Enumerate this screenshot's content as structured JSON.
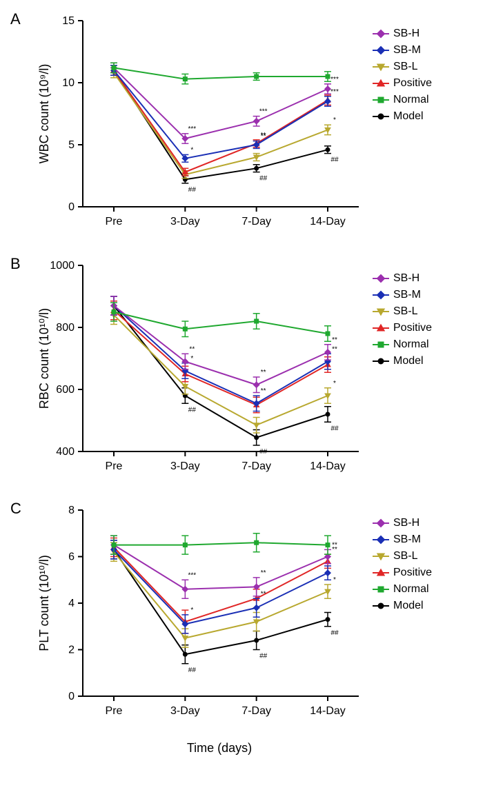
{
  "global": {
    "x_title": "Time (days)",
    "x_labels": [
      "Pre",
      "3-Day",
      "7-Day",
      "14-Day"
    ],
    "x_positions": [
      0,
      1,
      2,
      3
    ],
    "legend": [
      {
        "key": "SB-H",
        "color": "#9b2fae",
        "marker": "diamond"
      },
      {
        "key": "SB-M",
        "color": "#1a2fb5",
        "marker": "diamond"
      },
      {
        "key": "SB-L",
        "color": "#b8a82f",
        "marker": "tridown"
      },
      {
        "key": "Positive",
        "color": "#e02626",
        "marker": "triup"
      },
      {
        "key": "Normal",
        "color": "#1fa82f",
        "marker": "square"
      },
      {
        "key": "Model",
        "color": "#000000",
        "marker": "circle"
      }
    ],
    "background": "#ffffff",
    "axis_color": "#000000",
    "font": "Arial",
    "tick_fontsize": 16,
    "label_fontsize": 18,
    "panel_label_fontsize": 22,
    "line_width": 2,
    "marker_size": 6,
    "errorbar_cap": 5
  },
  "panels": [
    {
      "id": "A",
      "y_title": "WBC count (10⁹/l)",
      "ylim": [
        0,
        15
      ],
      "yticks": [
        0,
        5,
        10,
        15
      ],
      "series": {
        "Normal": {
          "y": [
            11.2,
            10.3,
            10.5,
            10.5
          ],
          "err": [
            0.4,
            0.4,
            0.3,
            0.4
          ]
        },
        "SB-H": {
          "y": [
            11.2,
            5.5,
            6.9,
            9.5
          ],
          "err": [
            0.4,
            0.4,
            0.4,
            0.4
          ],
          "sig": [
            "",
            "***",
            "***",
            "***"
          ]
        },
        "SB-M": {
          "y": [
            11.0,
            3.9,
            5.0,
            8.5
          ],
          "err": [
            0.4,
            0.3,
            0.3,
            0.4
          ],
          "sig": [
            "",
            "*",
            "**",
            "***"
          ]
        },
        "Positive": {
          "y": [
            11.0,
            2.8,
            5.1,
            8.6
          ],
          "err": [
            0.4,
            0.3,
            0.3,
            0.4
          ],
          "sig": [
            "",
            "",
            "**",
            ""
          ]
        },
        "SB-L": {
          "y": [
            10.8,
            2.6,
            4.0,
            6.2
          ],
          "err": [
            0.4,
            0.3,
            0.3,
            0.4
          ],
          "sig": [
            "",
            "",
            "",
            "*"
          ]
        },
        "Model": {
          "y": [
            11.0,
            2.2,
            3.1,
            4.6
          ],
          "err": [
            0.4,
            0.3,
            0.3,
            0.3
          ],
          "sig": [
            "",
            "##",
            "##",
            "##"
          ]
        }
      }
    },
    {
      "id": "B",
      "y_title": "RBC count (10¹⁰/l)",
      "ylim": [
        400,
        1000
      ],
      "yticks": [
        400,
        600,
        800,
        1000
      ],
      "series": {
        "Normal": {
          "y": [
            850,
            795,
            820,
            780
          ],
          "err": [
            30,
            25,
            25,
            25
          ]
        },
        "SB-H": {
          "y": [
            870,
            690,
            615,
            720
          ],
          "err": [
            30,
            25,
            25,
            25
          ],
          "sig": [
            "",
            "**",
            "**",
            "**"
          ]
        },
        "SB-M": {
          "y": [
            870,
            660,
            555,
            690
          ],
          "err": [
            30,
            25,
            25,
            25
          ],
          "sig": [
            "",
            "*",
            "**",
            "**"
          ]
        },
        "Positive": {
          "y": [
            855,
            650,
            550,
            680
          ],
          "err": [
            30,
            25,
            25,
            25
          ],
          "sig": [
            "",
            "",
            "",
            ""
          ]
        },
        "SB-L": {
          "y": [
            840,
            610,
            485,
            580
          ],
          "err": [
            30,
            25,
            25,
            25
          ],
          "sig": [
            "",
            "",
            "",
            "*"
          ]
        },
        "Model": {
          "y": [
            870,
            580,
            445,
            520
          ],
          "err": [
            30,
            25,
            25,
            25
          ],
          "sig": [
            "",
            "##",
            "##",
            "##"
          ]
        }
      }
    },
    {
      "id": "C",
      "y_title": "PLT count (10¹⁰/l)",
      "ylim": [
        0,
        8
      ],
      "yticks": [
        0,
        2,
        4,
        6,
        8
      ],
      "series": {
        "Normal": {
          "y": [
            6.5,
            6.5,
            6.6,
            6.5
          ],
          "err": [
            0.4,
            0.4,
            0.4,
            0.4
          ]
        },
        "SB-H": {
          "y": [
            6.5,
            4.6,
            4.7,
            6.0
          ],
          "err": [
            0.4,
            0.4,
            0.4,
            0.3
          ],
          "sig": [
            "",
            "***",
            "**",
            "**"
          ]
        },
        "Positive": {
          "y": [
            6.4,
            3.2,
            4.2,
            5.8
          ],
          "err": [
            0.4,
            0.5,
            0.4,
            0.3
          ],
          "sig": [
            "",
            "",
            "",
            "**"
          ]
        },
        "SB-M": {
          "y": [
            6.3,
            3.1,
            3.8,
            5.3
          ],
          "err": [
            0.4,
            0.4,
            0.4,
            0.3
          ],
          "sig": [
            "",
            "*",
            "**",
            ""
          ]
        },
        "SB-L": {
          "y": [
            6.2,
            2.5,
            3.2,
            4.5
          ],
          "err": [
            0.4,
            0.4,
            0.4,
            0.3
          ],
          "sig": [
            "",
            "",
            "",
            "*"
          ]
        },
        "Model": {
          "y": [
            6.3,
            1.8,
            2.4,
            3.3
          ],
          "err": [
            0.4,
            0.4,
            0.4,
            0.3
          ],
          "sig": [
            "",
            "##",
            "##",
            "##"
          ]
        }
      }
    }
  ]
}
